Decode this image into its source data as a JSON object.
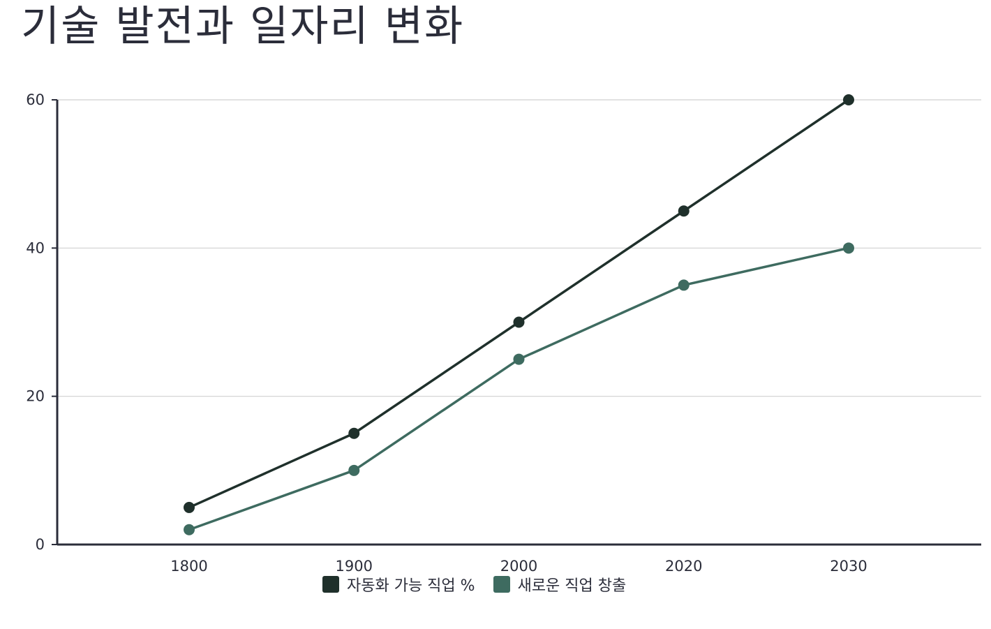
{
  "chart_data": {
    "type": "line",
    "title": "기술 발전과 일자리 변화",
    "xlabel": "",
    "ylabel": "",
    "categories": [
      "1800",
      "1900",
      "2000",
      "2020",
      "2030"
    ],
    "x": [
      1800,
      1900,
      2000,
      2020,
      2030
    ],
    "series": [
      {
        "name": "자동화 가능 직업 %",
        "values": [
          5,
          15,
          30,
          45,
          60
        ],
        "color": "#1f302b"
      },
      {
        "name": "새로운 직업 창출",
        "values": [
          2,
          10,
          25,
          35,
          40
        ],
        "color": "#3e6b60"
      }
    ],
    "y_ticks": [
      "0",
      "20",
      "40",
      "60"
    ],
    "ylim": [
      0,
      60
    ],
    "grid": true,
    "legend_position": "bottom-center"
  },
  "colors": {
    "axis": "#2b2d3a",
    "grid": "#d0d0d0"
  }
}
